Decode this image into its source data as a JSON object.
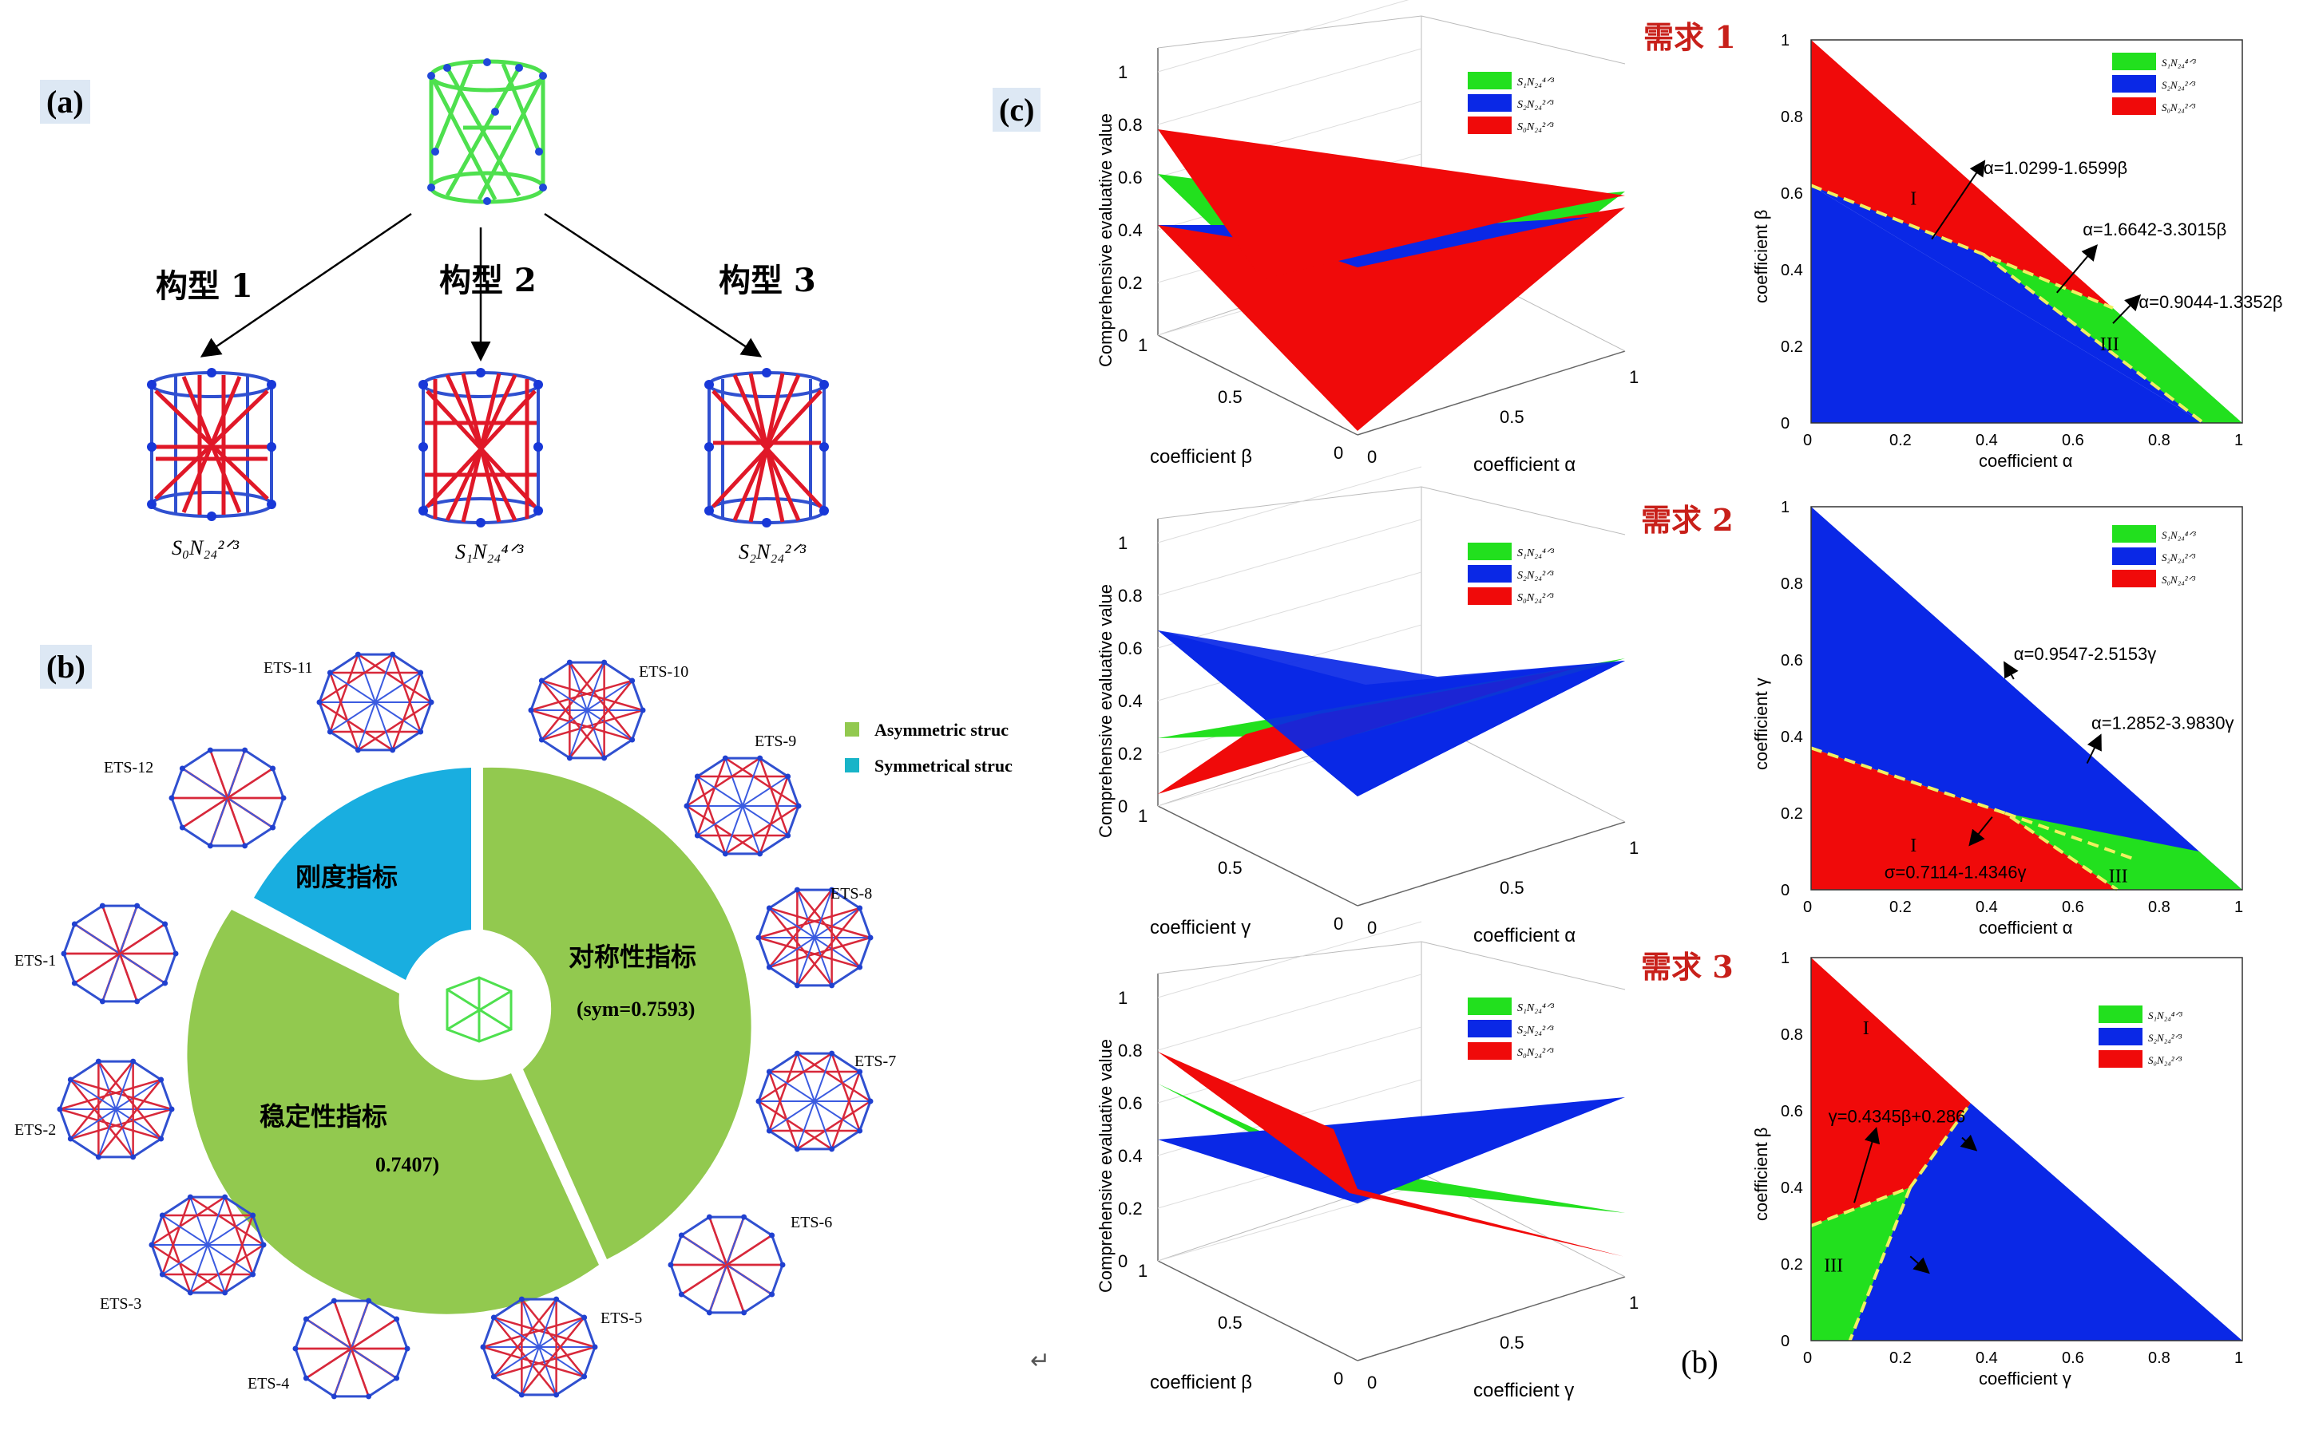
{
  "panel_labels": {
    "a": "(a)",
    "b": "(b)",
    "c": "(c)",
    "b2": "(b)"
  },
  "panel_a": {
    "configs": [
      {
        "title": "构型 1",
        "formula": "S₀N₂₄²ᐟ³"
      },
      {
        "title": "构型 2",
        "formula": "S₁N₂₄⁴ᐟ³"
      },
      {
        "title": "构型 3",
        "formula": "S₂N₂₄²ᐟ³"
      }
    ]
  },
  "panel_b": {
    "legend": [
      {
        "label": "Asymmetric struc",
        "color": "#92c94f"
      },
      {
        "label": "Symmetrical struc",
        "color": "#18b4c8"
      }
    ],
    "ets": [
      "ETS-11",
      "ETS-10",
      "ETS-12",
      "ETS-9",
      "ETS-8",
      "ETS-1",
      "ETS-7",
      "ETS-2",
      "ETS-6",
      "ETS-3",
      "ETS-5",
      "ETS-4"
    ],
    "sectors": {
      "rigid": {
        "label": "刚度指标",
        "color": "#19aee0"
      },
      "symmetry": {
        "label": "对称性指标",
        "value": "(sym=0.7593)",
        "color": "#92c94f"
      },
      "stability": {
        "label": "稳定性指标",
        "value": "0.7407)",
        "color": "#92c94f"
      }
    }
  },
  "panel_c": {
    "demands": [
      "需求 1",
      "需求 2",
      "需求 3"
    ],
    "z_label": "Comprehensive evaluative value",
    "rows": [
      {
        "ax1": "coefficient  β",
        "ax2": "coefficient  α",
        "legend": [
          "S₁N₂₄⁴ᐟ³",
          "S₂N₂₄²ᐟ³",
          "S₀N₂₄²ᐟ³"
        ],
        "p2_xlabel": "coefficient  α",
        "p2_ylabel": "coefficient  β",
        "lines": [
          "α=1.0299-1.6599β",
          "α=1.6642-3.3015β",
          "α=0.9044-1.3352β"
        ],
        "regions": [
          "I",
          "III"
        ]
      },
      {
        "ax1": "coefficient  γ",
        "ax2": "coefficient  α",
        "legend": [
          "S₁N₂₄⁴ᐟ³",
          "S₂N₂₄²ᐟ³",
          "S₀N₂₄²ᐟ³"
        ],
        "p2_xlabel": "coefficient  α",
        "p2_ylabel": "coefficient  γ",
        "lines": [
          "α=0.9547-2.5153γ",
          "α=1.2852-3.9830γ",
          "σ=0.7114-1.4346γ"
        ],
        "regions": [
          "I",
          "III"
        ]
      },
      {
        "ax1": "coefficient  β",
        "ax2": "coefficient  γ",
        "legend": [
          "S₁N₂₄⁴ᐟ³",
          "S₂N₂₄²ᐟ³",
          "S₀N₂₄²ᐟ³"
        ],
        "p2_xlabel": "coefficient  γ",
        "p2_ylabel": "coefficient  β",
        "lines": [
          "γ=0.4345β+0.286"
        ],
        "regions": [
          "I",
          "III"
        ]
      }
    ],
    "colors": {
      "green": "#22e01e",
      "blue": "#0a28e6",
      "red": "#f00a0a",
      "yellow": "#f0f060"
    },
    "ticks": {
      "z": [
        "0",
        "0.2",
        "0.4",
        "0.6",
        "0.8",
        "1"
      ],
      "base": [
        "0",
        "0.5",
        "1"
      ],
      "p2": [
        "0",
        "0.2",
        "0.4",
        "0.6",
        "0.8",
        "1"
      ]
    }
  },
  "misc": {
    "return_mark": "↵"
  }
}
